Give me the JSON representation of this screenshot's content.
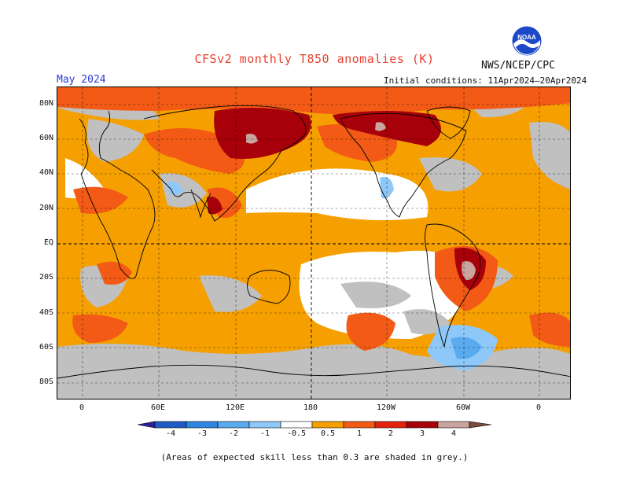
{
  "header": {
    "title": "CFSv2 monthly T850 anomalies (K)",
    "agency": "NWS/NCEP/CPC",
    "period": "May 2024",
    "initial_conditions": "Initial conditions: 11Apr2024–20Apr2024",
    "logo_text": "NOAA"
  },
  "map": {
    "lat_labels": [
      "80N",
      "60N",
      "40N",
      "20N",
      "EQ",
      "20S",
      "40S",
      "60S",
      "80S"
    ],
    "lon_labels": [
      "0",
      "60E",
      "120E",
      "180",
      "120W",
      "60W",
      "0"
    ],
    "projection": "cylindrical equidistant",
    "grid": "dashed",
    "skill_shading_color": "#c0c0c0"
  },
  "legend": {
    "labels": [
      "-4",
      "-3",
      "-2",
      "-1",
      "-0.5",
      "0.5",
      "1",
      "2",
      "3",
      "4"
    ],
    "colors": [
      "#2a1f9e",
      "#1e5bc4",
      "#2f86e0",
      "#5aaaf0",
      "#8ec8f8",
      "#ffffff",
      "#f5a000",
      "#f25a16",
      "#e4200e",
      "#a8000a",
      "#caa49e",
      "#7a4a40"
    ]
  },
  "footnote": "(Areas of expected skill less than 0.3 are shaded in grey.)"
}
